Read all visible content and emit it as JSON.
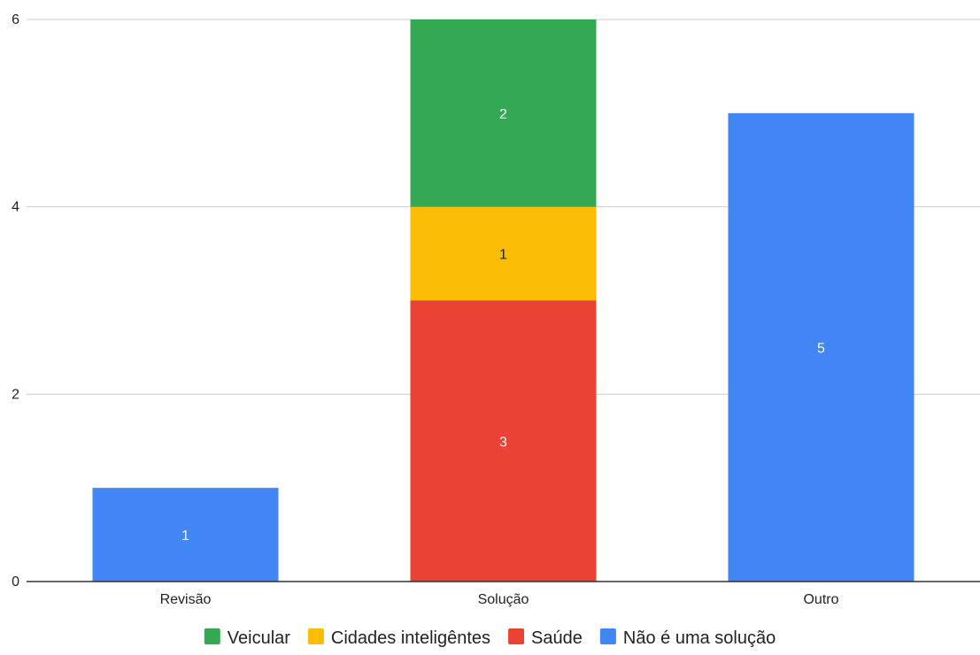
{
  "chart_data": {
    "type": "bar",
    "stacked": true,
    "categories": [
      "Revisão",
      "Solução",
      "Outro"
    ],
    "series": [
      {
        "name": "Não é uma solução",
        "values": [
          1,
          0,
          5
        ],
        "color": "#4285f4",
        "label_color": "#ffffff"
      },
      {
        "name": "Saúde",
        "values": [
          0,
          3,
          0
        ],
        "color": "#ea4335",
        "label_color": "#ffffff"
      },
      {
        "name": "Cidades inteligêntes",
        "values": [
          0,
          1,
          0
        ],
        "color": "#fbbc04",
        "label_color": "#222222"
      },
      {
        "name": "Veicular",
        "values": [
          0,
          2,
          0
        ],
        "color": "#34a853",
        "label_color": "#ffffff"
      }
    ],
    "legend_order": [
      "Veicular",
      "Cidades inteligêntes",
      "Saúde",
      "Não é uma solução"
    ],
    "ylim": [
      0,
      6
    ],
    "yticks": [
      "0",
      "2",
      "4",
      "6"
    ],
    "title": "",
    "xlabel": "",
    "ylabel": "",
    "grid": true,
    "legend_position": "bottom"
  }
}
